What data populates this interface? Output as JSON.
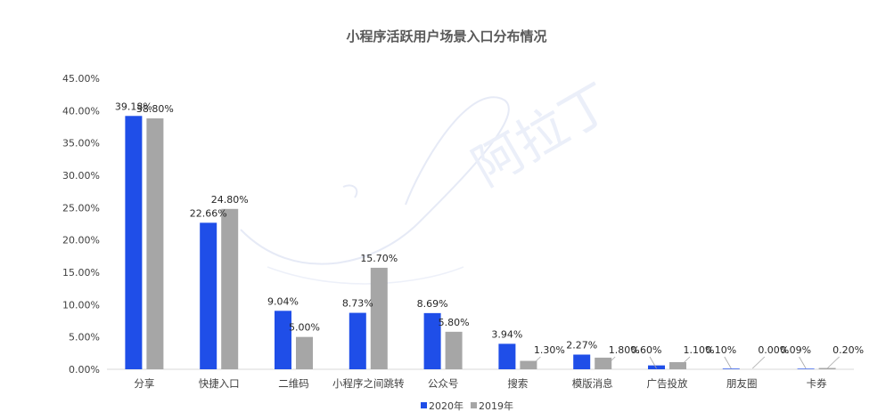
{
  "chart_data": {
    "type": "bar",
    "title": "小程序活跃用户场景入口分布情况",
    "xlabel": "",
    "ylabel": "",
    "ylim": [
      0,
      45
    ],
    "y_tick_labels": [
      "0.00%",
      "5.00%",
      "10.00%",
      "15.00%",
      "20.00%",
      "25.00%",
      "30.00%",
      "35.00%",
      "40.00%",
      "45.00%"
    ],
    "categories": [
      "分享",
      "快捷入口",
      "二维码",
      "小程序之间跳转",
      "公众号",
      "搜索",
      "模版消息",
      "广告投放",
      "朋友圈",
      "卡券"
    ],
    "series": [
      {
        "name": "2020年",
        "color": "#1f4ee8",
        "values": [
          39.18,
          22.66,
          9.04,
          8.73,
          8.69,
          3.94,
          2.27,
          0.6,
          0.1,
          0.09
        ],
        "labels": [
          "39.18%",
          "22.66%",
          "9.04%",
          "8.73%",
          "8.69%",
          "3.94%",
          "2.27%",
          "0.60%",
          "0.10%",
          "0.09%"
        ]
      },
      {
        "name": "2019年",
        "color": "#a6a6a6",
        "values": [
          38.8,
          24.8,
          5.0,
          15.7,
          5.8,
          1.3,
          1.8,
          1.1,
          0.0,
          0.2
        ],
        "labels": [
          "38.80%",
          "24.80%",
          "5.00%",
          "15.70%",
          "5.80%",
          "1.30%",
          "1.80%",
          "1.10%",
          "0.00%",
          "0.20%"
        ]
      }
    ],
    "grid": false,
    "legend_position": "bottom-center",
    "watermark": "阿拉丁"
  }
}
